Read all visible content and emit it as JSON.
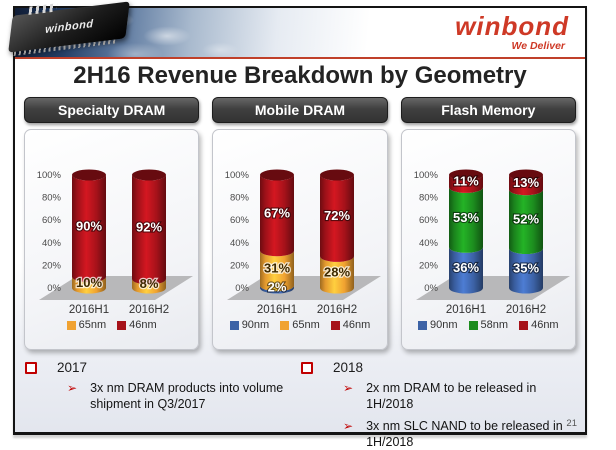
{
  "slide": {
    "logo": {
      "brand": "winbond",
      "tagline": "We Deliver",
      "chip_label": "winbond"
    },
    "title": "2H16 Revenue Breakdown by Geometry",
    "page_number": "21"
  },
  "chart_data": [
    {
      "type": "bar",
      "stacked": true,
      "title": "Specialty DRAM",
      "categories": [
        "2016H1",
        "2016H2"
      ],
      "series": [
        {
          "name": "65nm",
          "color": "#F0A231",
          "values": [
            10,
            8
          ],
          "label_style": "dark"
        },
        {
          "name": "46nm",
          "color": "#A6121A",
          "values": [
            90,
            92
          ],
          "label_style": "light"
        }
      ],
      "ylim": [
        0,
        100
      ],
      "yticks": [
        "0%",
        "20%",
        "40%",
        "60%",
        "80%",
        "100%"
      ],
      "value_suffix": "%",
      "legend_position": "bottom"
    },
    {
      "type": "bar",
      "stacked": true,
      "title": "Mobile DRAM",
      "categories": [
        "2016H1",
        "2016H2"
      ],
      "series": [
        {
          "name": "90nm",
          "color": "#3C62A6",
          "values": [
            2,
            0
          ],
          "label_style": "light"
        },
        {
          "name": "65nm",
          "color": "#F0A231",
          "values": [
            31,
            28
          ],
          "label_style": "dark"
        },
        {
          "name": "46nm",
          "color": "#A6121A",
          "values": [
            67,
            72
          ],
          "label_style": "light"
        }
      ],
      "ylim": [
        0,
        100
      ],
      "yticks": [
        "0%",
        "20%",
        "40%",
        "60%",
        "80%",
        "100%"
      ],
      "value_suffix": "%",
      "legend_position": "bottom"
    },
    {
      "type": "bar",
      "stacked": true,
      "title": "Flash Memory",
      "categories": [
        "2016H1",
        "2016H2"
      ],
      "series": [
        {
          "name": "90nm",
          "color": "#3C62A6",
          "values": [
            36,
            35
          ],
          "label_style": "light"
        },
        {
          "name": "58nm",
          "color": "#1C8C1E",
          "values": [
            53,
            52
          ],
          "label_style": "light"
        },
        {
          "name": "46nm",
          "color": "#A6121A",
          "values": [
            11,
            13
          ],
          "label_style": "light"
        }
      ],
      "ylim": [
        0,
        100
      ],
      "yticks": [
        "0%",
        "20%",
        "40%",
        "60%",
        "80%",
        "100%"
      ],
      "value_suffix": "%",
      "legend_position": "bottom"
    }
  ],
  "notes": [
    {
      "heading": "2017",
      "items": [
        "3x nm DRAM products into volume shipment in Q3/2017"
      ]
    },
    {
      "heading": "2018",
      "items": [
        "2x nm DRAM to be released in 1H/2018",
        "3x nm SLC NAND to be released in 1H/2018"
      ]
    }
  ],
  "colors": {
    "brand_red": "#CE3926",
    "separator_red": "#C0402A",
    "bullet_red": "#C00000",
    "panel_header_bg": "#3E3E3E",
    "floor_gray": "#B4B4B6"
  }
}
